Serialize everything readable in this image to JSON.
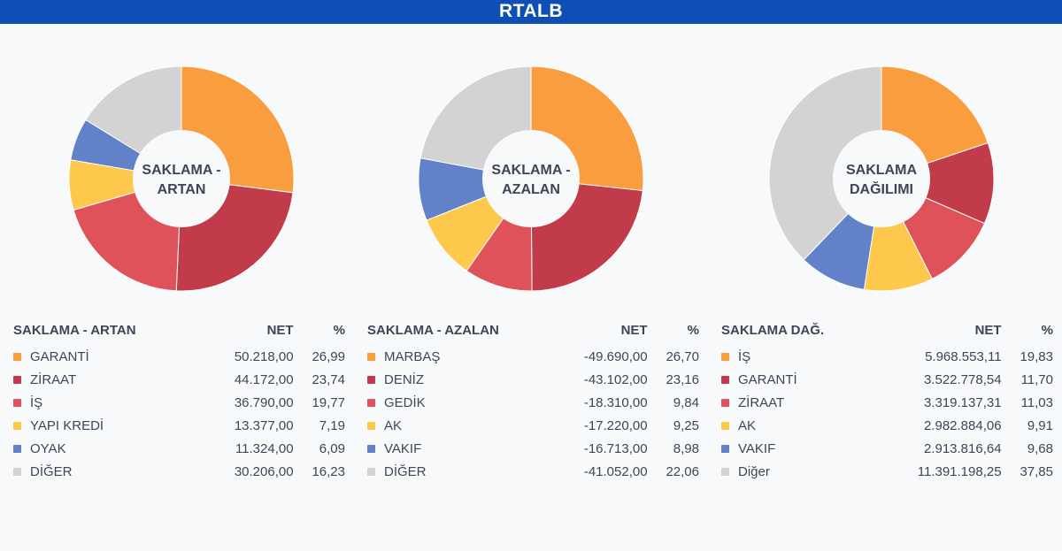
{
  "title": "RTALB",
  "colors": [
    "#f99d3e",
    "#c23b4b",
    "#e0525a",
    "#fdc84b",
    "#6181c8",
    "#d3d3d3"
  ],
  "chart_data": [
    {
      "type": "pie",
      "center_label": [
        "SAKLAMA -",
        "ARTAN"
      ],
      "table": {
        "headers": {
          "name": "SAKLAMA - ARTAN",
          "net": "NET",
          "pct": "%"
        },
        "rows": [
          {
            "name": "GARANTİ",
            "net": "50.218,00",
            "pct": "26,99",
            "value": 26.99
          },
          {
            "name": "ZİRAAT",
            "net": "44.172,00",
            "pct": "23,74",
            "value": 23.74
          },
          {
            "name": "İŞ",
            "net": "36.790,00",
            "pct": "19,77",
            "value": 19.77
          },
          {
            "name": "YAPI KREDİ",
            "net": "13.377,00",
            "pct": "7,19",
            "value": 7.19
          },
          {
            "name": "OYAK",
            "net": "11.324,00",
            "pct": "6,09",
            "value": 6.09
          },
          {
            "name": "DİĞER",
            "net": "30.206,00",
            "pct": "16,23",
            "value": 16.23
          }
        ]
      }
    },
    {
      "type": "pie",
      "center_label": [
        "SAKLAMA -",
        "AZALAN"
      ],
      "table": {
        "headers": {
          "name": "SAKLAMA - AZALAN",
          "net": "NET",
          "pct": "%"
        },
        "rows": [
          {
            "name": "MARBAŞ",
            "net": "-49.690,00",
            "pct": "26,70",
            "value": 26.7
          },
          {
            "name": "DENİZ",
            "net": "-43.102,00",
            "pct": "23,16",
            "value": 23.16
          },
          {
            "name": "GEDİK",
            "net": "-18.310,00",
            "pct": "9,84",
            "value": 9.84
          },
          {
            "name": "AK",
            "net": "-17.220,00",
            "pct": "9,25",
            "value": 9.25
          },
          {
            "name": "VAKIF",
            "net": "-16.713,00",
            "pct": "8,98",
            "value": 8.98
          },
          {
            "name": "DİĞER",
            "net": "-41.052,00",
            "pct": "22,06",
            "value": 22.06
          }
        ]
      }
    },
    {
      "type": "pie",
      "center_label": [
        "SAKLAMA",
        "DAĞILIMI"
      ],
      "table": {
        "headers": {
          "name": "SAKLAMA DAĞ.",
          "net": "NET",
          "pct": "%"
        },
        "rows": [
          {
            "name": "İŞ",
            "net": "5.968.553,11",
            "pct": "19,83",
            "value": 19.83
          },
          {
            "name": "GARANTİ",
            "net": "3.522.778,54",
            "pct": "11,70",
            "value": 11.7
          },
          {
            "name": "ZİRAAT",
            "net": "3.319.137,31",
            "pct": "11,03",
            "value": 11.03
          },
          {
            "name": "AK",
            "net": "2.982.884,06",
            "pct": "9,91",
            "value": 9.91
          },
          {
            "name": "VAKIF",
            "net": "2.913.816,64",
            "pct": "9,68",
            "value": 9.68
          },
          {
            "name": "Diğer",
            "net": "11.391.198,25",
            "pct": "37,85",
            "value": 37.85
          }
        ]
      }
    }
  ]
}
